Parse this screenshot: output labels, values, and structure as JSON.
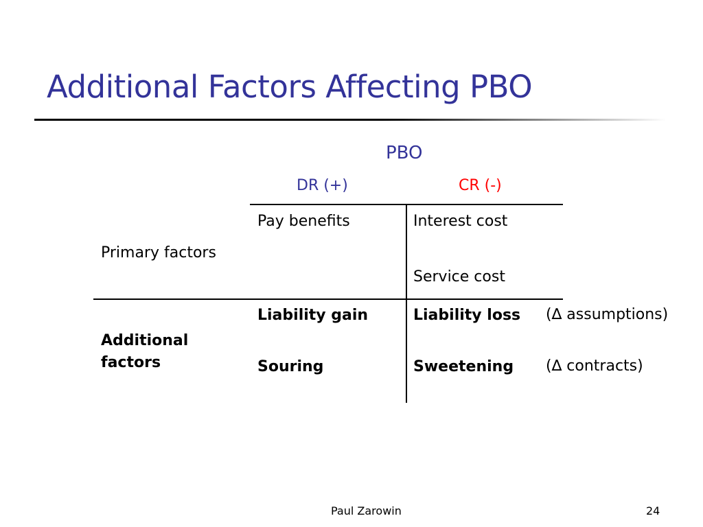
{
  "slide": {
    "title": "Additional Factors Affecting PBO",
    "footer_author": "Paul Zarowin",
    "page_number": "24"
  },
  "table": {
    "header": "PBO",
    "dr_label": "DR (+)",
    "cr_label": "CR (-)",
    "dr_color": "#333399",
    "cr_color": "#ff0000",
    "rows": [
      {
        "label": "Primary factors",
        "debits": [
          "Pay benefits"
        ],
        "credits": [
          "Interest cost",
          "Service cost"
        ]
      },
      {
        "label": "Additional factors",
        "debits": [
          "Liability gain",
          "Souring"
        ],
        "credits": [
          "Liability loss",
          "Sweetening"
        ],
        "notes": [
          "(∆ assumptions)",
          "(∆ contracts)"
        ]
      }
    ]
  },
  "colors": {
    "title": "#333399",
    "text": "#000000",
    "background": "#ffffff"
  }
}
